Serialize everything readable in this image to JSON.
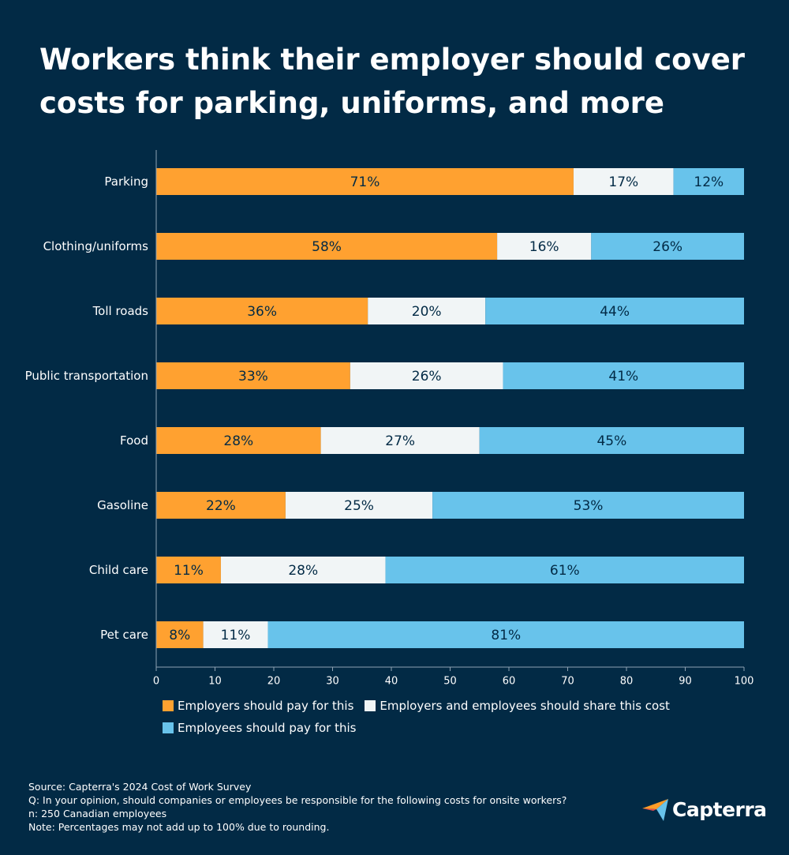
{
  "title": "Workers think their employer should cover costs for parking, uniforms, and more",
  "chart_data": {
    "type": "bar",
    "orientation": "horizontal",
    "stacked": true,
    "categories": [
      "Parking",
      "Clothing/uniforms",
      "Toll roads",
      "Public transportation",
      "Food",
      "Gasoline",
      "Child care",
      "Pet care"
    ],
    "series": [
      {
        "name": "Employers should pay for this",
        "color": "#ffa130",
        "label_color": "#022a45",
        "values": [
          71,
          58,
          36,
          33,
          28,
          22,
          11,
          8
        ]
      },
      {
        "name": "Employers and employees should share this cost",
        "color": "#f1f5f6",
        "label_color": "#022a45",
        "values": [
          17,
          16,
          20,
          26,
          27,
          25,
          28,
          11
        ]
      },
      {
        "name": "Employees should pay for this",
        "color": "#68c3eb",
        "label_color": "#022a45",
        "values": [
          12,
          26,
          44,
          41,
          45,
          53,
          61,
          81
        ]
      }
    ],
    "xlim": [
      0,
      100
    ],
    "xticks": [
      0,
      10,
      20,
      30,
      40,
      50,
      60,
      70,
      80,
      90,
      100
    ],
    "value_suffix": "%",
    "legend_position": "bottom",
    "grid": false
  },
  "footnotes": [
    "Source: Capterra's 2024 Cost of Work Survey",
    "Q: In your opinion, should companies or employees be responsible for the following costs for onsite workers?",
    "n: 250 Canadian employees",
    "Note: Percentages may not add up to 100% due to rounding."
  ],
  "logo": {
    "text": "Capterra",
    "icon": "capterra-arrow-icon"
  }
}
